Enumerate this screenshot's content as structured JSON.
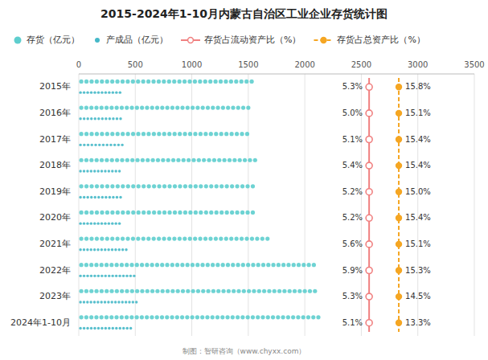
{
  "chart_data": {
    "type": "bar",
    "orientation": "horizontal",
    "title": "2015-2024年1-10月内蒙古自治区工业企业存货统计图",
    "categories": [
      "2015年",
      "2016年",
      "2017年",
      "2018年",
      "2019年",
      "2020年",
      "2021年",
      "2022年",
      "2023年",
      "2024年1-10月"
    ],
    "series": [
      {
        "name": "存货（亿元）",
        "color": "#5ecece",
        "marker": "circle",
        "values": [
          1530,
          1500,
          1490,
          1560,
          1540,
          1540,
          1670,
          2080,
          2090,
          2120
        ]
      },
      {
        "name": "产成品（亿元）",
        "color": "#45b8c8",
        "marker": "circle",
        "values": [
          365,
          370,
          385,
          360,
          370,
          360,
          420,
          490,
          510,
          460
        ]
      },
      {
        "name": "存货占流动资产比（%）",
        "type": "scatter",
        "color": "#f08080",
        "marker": "circle",
        "line_style": "solid",
        "values": [
          5.3,
          5.0,
          5.1,
          5.4,
          5.2,
          5.2,
          5.6,
          5.9,
          5.3,
          5.1
        ],
        "value_labels": [
          "5.3%",
          "5.0%",
          "5.1%",
          "5.4%",
          "5.2%",
          "5.2%",
          "5.6%",
          "5.9%",
          "5.3%",
          "5.1%"
        ]
      },
      {
        "name": "存货占总资产比（%）",
        "type": "scatter",
        "color": "#f5a623",
        "marker": "circle",
        "line_style": "dashed",
        "values": [
          15.8,
          15.1,
          15.4,
          15.4,
          15.0,
          15.4,
          15.1,
          15.3,
          14.5,
          13.3
        ],
        "value_labels": [
          "15.8%",
          "15.1%",
          "15.4%",
          "15.4%",
          "15.0%",
          "15.4%",
          "15.1%",
          "15.3%",
          "14.5%",
          "13.3%"
        ]
      }
    ],
    "xlim": [
      0,
      3500
    ],
    "xticks": [
      0,
      500,
      1000,
      1500,
      2000,
      2500,
      3000,
      3500
    ],
    "grid": true,
    "legend": "top",
    "annotations": [
      "制图：智研咨询（www.chyxx.com）"
    ]
  }
}
